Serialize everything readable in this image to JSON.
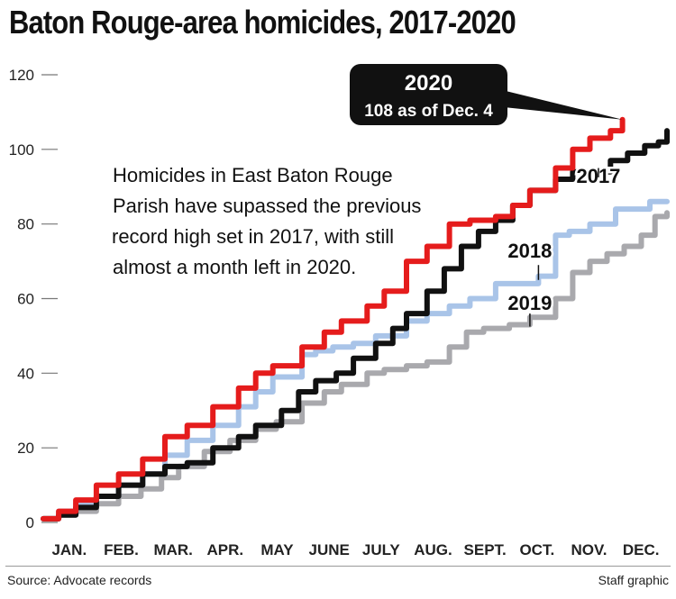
{
  "title": "Baton Rouge-area homicides, 2017-2020",
  "footer": {
    "source": "Source: Advocate records",
    "credit": "Staff graphic"
  },
  "annotation": "Homicides in East Baton Rouge Parish have supassed the previous record high set in 2017, with still almost a month left in 2020.",
  "callout": {
    "title": "2020",
    "subtitle": "108 as of Dec. 4"
  },
  "chart_data": {
    "type": "line",
    "x_unit": "day of year",
    "xlim": [
      1,
      365
    ],
    "ylim": [
      0,
      120
    ],
    "y_ticks": [
      0,
      20,
      40,
      60,
      80,
      100,
      120
    ],
    "month_labels": [
      "JAN.",
      "FEB.",
      "MAR.",
      "APR.",
      "MAY",
      "JUNE",
      "JULY",
      "AUG.",
      "SEPT.",
      "OCT.",
      "NOV.",
      "DEC."
    ],
    "grid": false,
    "series": [
      {
        "name": "2019",
        "color": "#a9a9ad",
        "points": [
          [
            1,
            1
          ],
          [
            10,
            2
          ],
          [
            20,
            3
          ],
          [
            32,
            5
          ],
          [
            45,
            7
          ],
          [
            58,
            9
          ],
          [
            70,
            12
          ],
          [
            80,
            15
          ],
          [
            95,
            19
          ],
          [
            110,
            22
          ],
          [
            125,
            25
          ],
          [
            137,
            27
          ],
          [
            152,
            32
          ],
          [
            165,
            35
          ],
          [
            175,
            37
          ],
          [
            190,
            40
          ],
          [
            200,
            41
          ],
          [
            213,
            42
          ],
          [
            225,
            43
          ],
          [
            238,
            47
          ],
          [
            248,
            51
          ],
          [
            258,
            52
          ],
          [
            273,
            53
          ],
          [
            285,
            55
          ],
          [
            300,
            60
          ],
          [
            310,
            67
          ],
          [
            320,
            70
          ],
          [
            330,
            72
          ],
          [
            340,
            74
          ],
          [
            350,
            77
          ],
          [
            358,
            82
          ],
          [
            365,
            83
          ]
        ]
      },
      {
        "name": "2018",
        "color": "#a9c4e8",
        "points": [
          [
            1,
            1
          ],
          [
            10,
            3
          ],
          [
            20,
            5
          ],
          [
            32,
            7
          ],
          [
            45,
            10
          ],
          [
            59,
            13
          ],
          [
            72,
            18
          ],
          [
            85,
            22
          ],
          [
            100,
            26
          ],
          [
            115,
            31
          ],
          [
            125,
            35
          ],
          [
            135,
            39
          ],
          [
            152,
            45
          ],
          [
            160,
            46
          ],
          [
            170,
            47
          ],
          [
            182,
            48
          ],
          [
            195,
            50
          ],
          [
            213,
            54
          ],
          [
            225,
            56
          ],
          [
            238,
            58
          ],
          [
            250,
            60
          ],
          [
            265,
            64
          ],
          [
            280,
            64
          ],
          [
            290,
            66
          ],
          [
            300,
            77
          ],
          [
            308,
            78
          ],
          [
            320,
            80
          ],
          [
            335,
            84
          ],
          [
            355,
            86
          ],
          [
            365,
            86
          ]
        ]
      },
      {
        "name": "2017",
        "color": "#111111",
        "points": [
          [
            1,
            1
          ],
          [
            10,
            2
          ],
          [
            20,
            4
          ],
          [
            32,
            7
          ],
          [
            45,
            10
          ],
          [
            59,
            13
          ],
          [
            72,
            15
          ],
          [
            85,
            16
          ],
          [
            100,
            20
          ],
          [
            115,
            23
          ],
          [
            125,
            26
          ],
          [
            140,
            30
          ],
          [
            150,
            35
          ],
          [
            160,
            38
          ],
          [
            172,
            40
          ],
          [
            182,
            44
          ],
          [
            195,
            48
          ],
          [
            205,
            52
          ],
          [
            213,
            56
          ],
          [
            225,
            62
          ],
          [
            235,
            68
          ],
          [
            245,
            74
          ],
          [
            255,
            78
          ],
          [
            265,
            81
          ],
          [
            275,
            85
          ],
          [
            285,
            89
          ],
          [
            300,
            92
          ],
          [
            310,
            94
          ],
          [
            320,
            94
          ],
          [
            332,
            97
          ],
          [
            342,
            99
          ],
          [
            352,
            101
          ],
          [
            360,
            102
          ],
          [
            365,
            105
          ]
        ]
      },
      {
        "name": "2020",
        "color": "#e51c1c",
        "points": [
          [
            1,
            1
          ],
          [
            10,
            3
          ],
          [
            20,
            6
          ],
          [
            32,
            10
          ],
          [
            45,
            13
          ],
          [
            59,
            17
          ],
          [
            72,
            23
          ],
          [
            85,
            26
          ],
          [
            100,
            31
          ],
          [
            115,
            36
          ],
          [
            125,
            40
          ],
          [
            135,
            42
          ],
          [
            152,
            47
          ],
          [
            165,
            51
          ],
          [
            175,
            54
          ],
          [
            190,
            58
          ],
          [
            200,
            62
          ],
          [
            213,
            70
          ],
          [
            225,
            74
          ],
          [
            238,
            80
          ],
          [
            250,
            81
          ],
          [
            265,
            82
          ],
          [
            275,
            85
          ],
          [
            285,
            89
          ],
          [
            300,
            95
          ],
          [
            310,
            100
          ],
          [
            320,
            103
          ],
          [
            332,
            105
          ],
          [
            339,
            108
          ]
        ]
      }
    ],
    "series_labels": [
      {
        "series": "2017",
        "text": "2017",
        "at": [
          325,
          91
        ]
      },
      {
        "series": "2018",
        "text": "2018",
        "at": [
          285,
          71
        ]
      },
      {
        "series": "2019",
        "text": "2019",
        "at": [
          285,
          57
        ]
      }
    ]
  }
}
